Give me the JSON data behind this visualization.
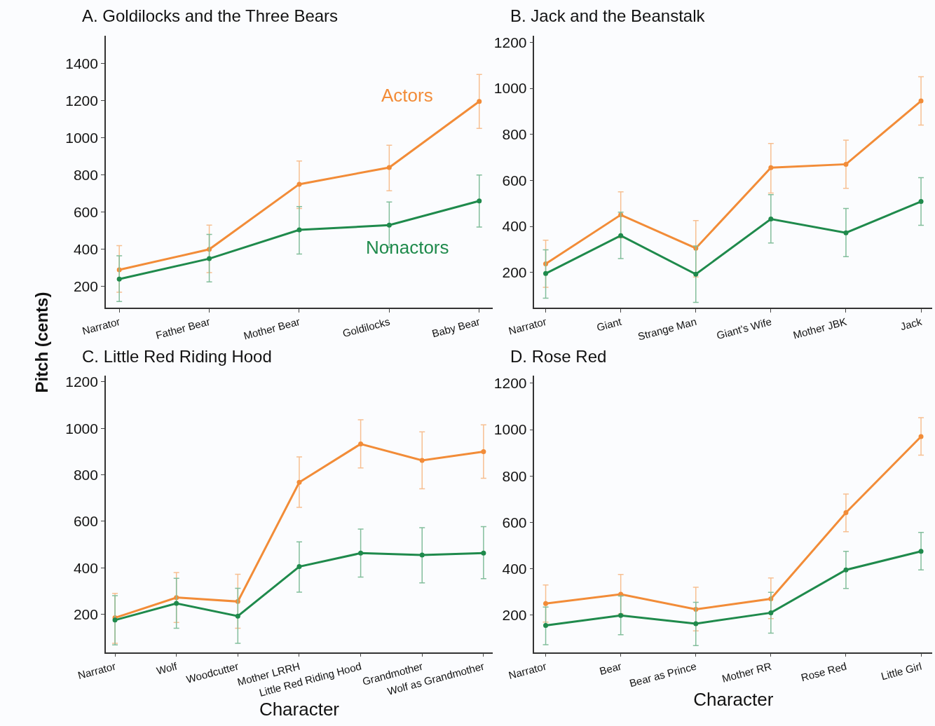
{
  "chart_data": [
    {
      "type": "line",
      "title": "A. Goldilocks and the Three Bears",
      "ylabel": "Pitch (cents)",
      "categories": [
        "Narrator",
        "Father Bear",
        "Mother Bear",
        "Goldilocks",
        "Baby Bear"
      ],
      "ylim": [
        87,
        1550
      ],
      "yticks": [
        200,
        400,
        600,
        800,
        1000,
        1200,
        1400
      ],
      "grid": false,
      "legend": false,
      "marker": "circle",
      "line_style": "solid",
      "series": [
        {
          "name": "Actors",
          "color": "#f28c38",
          "values": [
            290,
            400,
            750,
            840,
            1195
          ],
          "errors": [
            [
              170,
              420
            ],
            [
              275,
              530
            ],
            [
              620,
              875
            ],
            [
              715,
              960
            ],
            [
              1050,
              1340
            ]
          ]
        },
        {
          "name": "Nonactors",
          "color": "#1f8a4c",
          "values": [
            240,
            350,
            505,
            530,
            660
          ],
          "errors": [
            [
              120,
              365
            ],
            [
              225,
              480
            ],
            [
              375,
              630
            ],
            [
              410,
              655
            ],
            [
              520,
              800
            ]
          ]
        }
      ]
    },
    {
      "type": "line",
      "title": "B. Jack and the Beanstalk",
      "categories": [
        "Narrator",
        "Giant",
        "Strange Man",
        "Giant’s Wife",
        "Mother JBK",
        "Jack"
      ],
      "ylim": [
        47,
        1230
      ],
      "yticks": [
        200,
        400,
        600,
        800,
        1000,
        1200
      ],
      "grid": false,
      "legend": false,
      "marker": "circle",
      "line_style": "solid",
      "series": [
        {
          "color": "#f28c38",
          "values": [
            237,
            450,
            305,
            655,
            670,
            945
          ],
          "errors": [
            [
              135,
              340
            ],
            [
              350,
              550
            ],
            [
              180,
              425
            ],
            [
              545,
              760
            ],
            [
              565,
              775
            ],
            [
              840,
              1050
            ]
          ]
        },
        {
          "color": "#1f8a4c",
          "values": [
            195,
            360,
            192,
            432,
            372,
            508
          ],
          "errors": [
            [
              88,
              298
            ],
            [
              260,
              462
            ],
            [
              70,
              315
            ],
            [
              328,
              538
            ],
            [
              268,
              478
            ],
            [
              405,
              612
            ]
          ]
        }
      ]
    },
    {
      "type": "line",
      "title": "C. Little Red Riding Hood",
      "xlabel": "Character",
      "categories": [
        "Narrator",
        "Wolf",
        "Woodcutter",
        "Mother LRRH",
        "Little Red Riding Hood",
        "Grandmother",
        "Wolf as Grandmother"
      ],
      "ylim": [
        37,
        1227
      ],
      "yticks": [
        200,
        400,
        600,
        800,
        1000,
        1200
      ],
      "grid": false,
      "legend": false,
      "marker": "circle",
      "line_style": "solid",
      "series": [
        {
          "color": "#f28c38",
          "values": [
            185,
            272,
            255,
            768,
            933,
            862,
            900
          ],
          "errors": [
            [
              75,
              290
            ],
            [
              165,
              380
            ],
            [
              140,
              372
            ],
            [
              660,
              877
            ],
            [
              830,
              1037
            ],
            [
              740,
              985
            ],
            [
              785,
              1015
            ]
          ]
        },
        {
          "color": "#1f8a4c",
          "values": [
            175,
            247,
            192,
            405,
            463,
            455,
            463
          ],
          "errors": [
            [
              68,
              280
            ],
            [
              140,
              355
            ],
            [
              75,
              312
            ],
            [
              295,
              512
            ],
            [
              360,
              567
            ],
            [
              335,
              573
            ],
            [
              353,
              577
            ]
          ]
        }
      ]
    },
    {
      "type": "line",
      "title": "D. Rose Red",
      "xlabel": "Character",
      "categories": [
        "Narrator",
        "Bear",
        "Bear as Prince",
        "Mother RR",
        "Rose Red",
        "Little Girl"
      ],
      "ylim": [
        40,
        1233
      ],
      "yticks": [
        200,
        400,
        600,
        800,
        1000,
        1200
      ],
      "grid": false,
      "legend": false,
      "marker": "circle",
      "line_style": "solid",
      "series": [
        {
          "color": "#f28c38",
          "values": [
            250,
            290,
            225,
            270,
            642,
            970
          ],
          "errors": [
            [
              170,
              330
            ],
            [
              205,
              375
            ],
            [
              132,
              320
            ],
            [
              185,
              360
            ],
            [
              560,
              722
            ],
            [
              890,
              1052
            ]
          ]
        },
        {
          "color": "#1f8a4c",
          "values": [
            155,
            198,
            163,
            210,
            395,
            475
          ],
          "errors": [
            [
              72,
              235
            ],
            [
              115,
              282
            ],
            [
              68,
              255
            ],
            [
              122,
              298
            ],
            [
              315,
              475
            ],
            [
              395,
              557
            ]
          ]
        }
      ]
    }
  ]
}
